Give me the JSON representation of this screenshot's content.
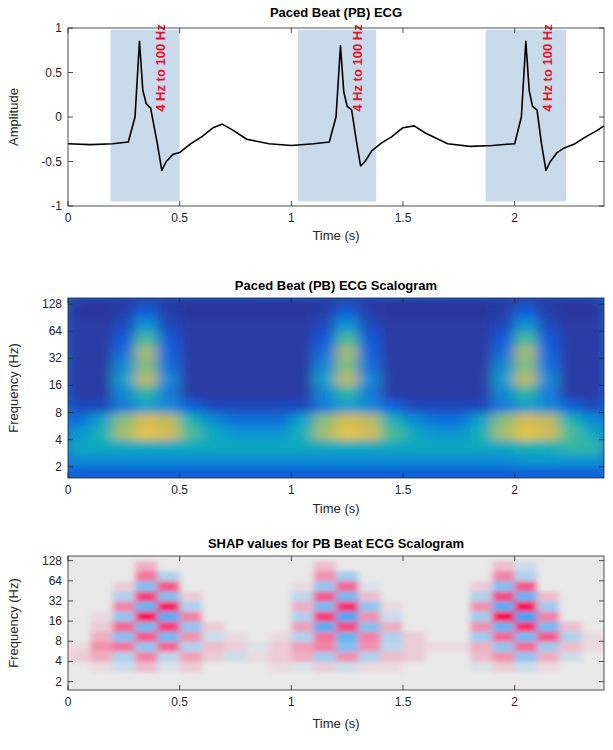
{
  "chart_data": [
    {
      "type": "line",
      "title": "Paced Beat (PB) ECG",
      "x_label": "Time (s)",
      "y_label": "Amplitude",
      "xlim": [
        0,
        2.4
      ],
      "ylim": [
        -1,
        1
      ],
      "xticks": [
        0,
        0.5,
        1,
        1.5,
        2
      ],
      "yticks": [
        -1,
        -0.5,
        0,
        0.5,
        1
      ],
      "color": "#000000",
      "x": [
        0,
        0.1,
        0.2,
        0.27,
        0.3,
        0.32,
        0.335,
        0.35,
        0.37,
        0.4,
        0.42,
        0.44,
        0.47,
        0.5,
        0.55,
        0.6,
        0.65,
        0.69,
        0.74,
        0.8,
        0.9,
        1.0,
        1.1,
        1.17,
        1.2,
        1.22,
        1.235,
        1.25,
        1.27,
        1.29,
        1.31,
        1.33,
        1.36,
        1.4,
        1.45,
        1.5,
        1.55,
        1.6,
        1.7,
        1.8,
        1.9,
        2.0,
        2.03,
        2.05,
        2.065,
        2.08,
        2.1,
        2.12,
        2.14,
        2.16,
        2.19,
        2.22,
        2.27,
        2.32,
        2.37,
        2.4
      ],
      "values": [
        -0.3,
        -0.31,
        -0.3,
        -0.28,
        0,
        0.85,
        0.3,
        0.15,
        0.1,
        -0.3,
        -0.6,
        -0.5,
        -0.42,
        -0.4,
        -0.3,
        -0.22,
        -0.12,
        -0.08,
        -0.15,
        -0.25,
        -0.3,
        -0.32,
        -0.3,
        -0.28,
        0,
        0.8,
        0.28,
        0.12,
        0.08,
        -0.25,
        -0.55,
        -0.5,
        -0.38,
        -0.3,
        -0.22,
        -0.12,
        -0.1,
        -0.18,
        -0.3,
        -0.33,
        -0.32,
        -0.3,
        0,
        0.85,
        0.3,
        0.12,
        0.08,
        -0.3,
        -0.6,
        -0.5,
        -0.4,
        -0.35,
        -0.3,
        -0.22,
        -0.15,
        -0.1
      ],
      "annotations": [
        {
          "text": "4 Hz to 100 Hz",
          "x_start": 0.19,
          "x_end": 0.5,
          "y_start": -0.95,
          "y_end": 0.98
        },
        {
          "text": "4 Hz to 100 Hz",
          "x_start": 1.03,
          "x_end": 1.38,
          "y_start": -0.95,
          "y_end": 0.98
        },
        {
          "text": "4 Hz to 100 Hz",
          "x_start": 1.87,
          "x_end": 2.23,
          "y_start": -0.95,
          "y_end": 0.98
        }
      ]
    },
    {
      "type": "heatmap",
      "title": "Paced Beat (PB) ECG Scalogram",
      "x_label": "Time (s)",
      "y_label": "Frequency (Hz)",
      "log": "y",
      "xlim": [
        0,
        2.4
      ],
      "ylim": [
        1.5,
        150
      ],
      "xticks": [
        0,
        0.5,
        1,
        1.5,
        2
      ],
      "yticks": [
        2,
        4,
        8,
        16,
        32,
        64,
        128
      ],
      "x_edges": [
        0,
        0.1,
        0.2,
        0.3,
        0.4,
        0.5,
        0.6,
        0.7,
        0.8,
        0.9,
        1.0,
        1.1,
        1.2,
        1.3,
        1.4,
        1.5,
        1.6,
        1.7,
        1.8,
        1.9,
        2.0,
        2.1,
        2.2,
        2.3,
        2.4
      ],
      "y_edges": [
        1.5,
        2,
        2.8,
        4,
        5.7,
        8,
        11.3,
        16,
        22.6,
        32,
        45,
        64,
        90,
        128,
        150
      ],
      "zlim": [
        0,
        1
      ],
      "cells": [
        [
          0.12,
          0.12,
          0.12,
          0.12,
          0.12,
          0.12,
          0.12,
          0.12,
          0.12,
          0.12,
          0.12,
          0.12,
          0.12,
          0.12,
          0.12,
          0.12,
          0.12,
          0.12,
          0.12,
          0.12,
          0.12,
          0.12,
          0.12,
          0.12
        ],
        [
          0.3,
          0.3,
          0.3,
          0.3,
          0.3,
          0.3,
          0.3,
          0.3,
          0.3,
          0.3,
          0.3,
          0.3,
          0.3,
          0.3,
          0.3,
          0.3,
          0.3,
          0.3,
          0.3,
          0.3,
          0.35,
          0.35,
          0.35,
          0.35
        ],
        [
          0.45,
          0.45,
          0.45,
          0.45,
          0.45,
          0.45,
          0.45,
          0.45,
          0.45,
          0.45,
          0.45,
          0.45,
          0.45,
          0.45,
          0.45,
          0.45,
          0.45,
          0.45,
          0.45,
          0.45,
          0.5,
          0.5,
          0.55,
          0.55
        ],
        [
          0.35,
          0.5,
          0.75,
          0.9,
          0.85,
          0.6,
          0.45,
          0.35,
          0.35,
          0.35,
          0.5,
          0.75,
          0.9,
          0.85,
          0.6,
          0.45,
          0.35,
          0.35,
          0.5,
          0.75,
          0.9,
          0.85,
          0.6,
          0.45
        ],
        [
          0.2,
          0.4,
          0.7,
          0.85,
          0.8,
          0.5,
          0.3,
          0.2,
          0.2,
          0.2,
          0.4,
          0.7,
          0.85,
          0.8,
          0.5,
          0.3,
          0.2,
          0.2,
          0.4,
          0.7,
          0.85,
          0.8,
          0.5,
          0.3
        ],
        [
          0.08,
          0.08,
          0.25,
          0.4,
          0.3,
          0.15,
          0.08,
          0.08,
          0.08,
          0.08,
          0.08,
          0.25,
          0.4,
          0.3,
          0.15,
          0.08,
          0.08,
          0.08,
          0.08,
          0.25,
          0.4,
          0.3,
          0.15,
          0.08
        ],
        [
          0.04,
          0.04,
          0.3,
          0.55,
          0.25,
          0.04,
          0.04,
          0.04,
          0.04,
          0.04,
          0.04,
          0.3,
          0.55,
          0.25,
          0.04,
          0.04,
          0.04,
          0.04,
          0.04,
          0.3,
          0.55,
          0.25,
          0.04,
          0.04
        ],
        [
          0.04,
          0.04,
          0.4,
          0.8,
          0.3,
          0.04,
          0.04,
          0.04,
          0.04,
          0.04,
          0.04,
          0.4,
          0.8,
          0.3,
          0.04,
          0.04,
          0.04,
          0.04,
          0.04,
          0.4,
          0.8,
          0.3,
          0.04,
          0.04
        ],
        [
          0.04,
          0.04,
          0.3,
          0.7,
          0.2,
          0.04,
          0.04,
          0.04,
          0.04,
          0.04,
          0.04,
          0.3,
          0.7,
          0.2,
          0.04,
          0.04,
          0.04,
          0.04,
          0.04,
          0.3,
          0.7,
          0.2,
          0.04,
          0.04
        ],
        [
          0.04,
          0.04,
          0.2,
          0.75,
          0.15,
          0.04,
          0.04,
          0.04,
          0.04,
          0.04,
          0.04,
          0.2,
          0.75,
          0.15,
          0.04,
          0.04,
          0.04,
          0.04,
          0.04,
          0.2,
          0.75,
          0.15,
          0.04,
          0.04
        ],
        [
          0.04,
          0.04,
          0.12,
          0.6,
          0.12,
          0.04,
          0.04,
          0.04,
          0.04,
          0.04,
          0.04,
          0.12,
          0.6,
          0.12,
          0.04,
          0.04,
          0.04,
          0.04,
          0.04,
          0.12,
          0.6,
          0.12,
          0.04,
          0.04
        ],
        [
          0.04,
          0.04,
          0.08,
          0.35,
          0.08,
          0.04,
          0.04,
          0.04,
          0.04,
          0.04,
          0.04,
          0.08,
          0.35,
          0.08,
          0.04,
          0.04,
          0.04,
          0.04,
          0.04,
          0.08,
          0.35,
          0.08,
          0.04,
          0.04
        ],
        [
          0.03,
          0.03,
          0.05,
          0.15,
          0.05,
          0.03,
          0.03,
          0.03,
          0.03,
          0.03,
          0.03,
          0.05,
          0.15,
          0.05,
          0.03,
          0.03,
          0.03,
          0.03,
          0.03,
          0.05,
          0.15,
          0.05,
          0.03,
          0.03
        ],
        [
          0.03,
          0.03,
          0.03,
          0.03,
          0.03,
          0.03,
          0.03,
          0.03,
          0.03,
          0.03,
          0.03,
          0.03,
          0.03,
          0.03,
          0.03,
          0.03,
          0.03,
          0.03,
          0.03,
          0.03,
          0.03,
          0.03,
          0.03,
          0.03
        ]
      ]
    },
    {
      "type": "heatmap",
      "title": "SHAP values for PB Beat ECG Scalogram",
      "x_label": "Time (s)",
      "y_label": "Frequency (Hz)",
      "log": "y",
      "xlim": [
        0,
        2.4
      ],
      "ylim": [
        1.5,
        150
      ],
      "xticks": [
        0,
        0.5,
        1,
        1.5,
        2
      ],
      "yticks": [
        2,
        4,
        8,
        16,
        32,
        64,
        128
      ],
      "x_edges": [
        0,
        0.1,
        0.2,
        0.3,
        0.4,
        0.5,
        0.6,
        0.7,
        0.8,
        0.9,
        1.0,
        1.1,
        1.2,
        1.3,
        1.4,
        1.5,
        1.6,
        1.7,
        1.8,
        1.9,
        2.0,
        2.1,
        2.2,
        2.3,
        2.4
      ],
      "y_edges": [
        1.5,
        2,
        2.8,
        4,
        5.7,
        8,
        11.3,
        16,
        22.6,
        32,
        45,
        64,
        90,
        128,
        150
      ],
      "zlim": [
        -0.8,
        0.8
      ],
      "cells": [
        [
          0,
          0,
          0,
          0,
          0,
          0,
          0,
          0,
          0,
          0,
          0,
          0,
          0,
          0,
          0,
          0,
          0,
          0,
          0,
          0,
          0,
          0,
          0,
          0
        ],
        [
          0,
          0,
          0,
          0,
          0,
          0,
          0,
          0,
          0,
          0,
          0,
          0,
          0,
          0,
          0,
          0,
          0,
          0,
          0,
          0,
          0,
          0,
          0,
          0
        ],
        [
          0,
          0.05,
          -0.1,
          0.15,
          -0.05,
          0.1,
          0,
          0,
          0,
          0.05,
          -0.05,
          0.1,
          -0.1,
          0.05,
          0.05,
          0,
          0,
          0,
          -0.05,
          0.1,
          -0.1,
          0.05,
          0,
          0
        ],
        [
          0.1,
          0.2,
          -0.2,
          0.35,
          -0.15,
          0.25,
          0.1,
          -0.1,
          0.05,
          0.1,
          0.2,
          -0.25,
          0.3,
          -0.2,
          0.15,
          0.1,
          0,
          0,
          0.15,
          0.3,
          -0.3,
          0.2,
          -0.1,
          0
        ],
        [
          0.05,
          0.3,
          0.4,
          -0.3,
          0.45,
          -0.2,
          0.15,
          0.1,
          -0.05,
          0.1,
          0.25,
          0.35,
          -0.35,
          0.3,
          -0.15,
          0.1,
          0.05,
          0.05,
          0.2,
          -0.3,
          0.45,
          -0.25,
          0.15,
          0.05
        ],
        [
          0,
          0.2,
          -0.35,
          0.5,
          -0.4,
          0.3,
          -0.1,
          0.05,
          0,
          0.05,
          -0.2,
          0.4,
          -0.45,
          0.35,
          -0.2,
          0.1,
          0,
          0,
          -0.25,
          0.45,
          -0.4,
          0.5,
          -0.2,
          0.05
        ],
        [
          0,
          0.1,
          0.45,
          -0.4,
          0.6,
          -0.3,
          0.1,
          0,
          0,
          0,
          0.25,
          -0.5,
          0.55,
          -0.35,
          0.2,
          0,
          0,
          0,
          0.3,
          -0.45,
          0.65,
          -0.4,
          0.15,
          0
        ],
        [
          0,
          0.05,
          -0.3,
          0.75,
          -0.5,
          0.35,
          0,
          0,
          0,
          0,
          -0.2,
          0.6,
          -0.55,
          0.3,
          -0.1,
          0,
          0,
          0,
          -0.25,
          0.8,
          -0.6,
          0.35,
          0,
          0
        ],
        [
          0,
          0,
          0.35,
          -0.45,
          0.7,
          -0.2,
          0,
          0,
          0,
          0,
          0.2,
          -0.4,
          0.65,
          -0.3,
          0.05,
          0,
          0,
          0,
          0.3,
          -0.5,
          0.75,
          -0.25,
          0,
          0
        ],
        [
          0,
          0,
          -0.2,
          0.6,
          -0.35,
          0.1,
          0,
          0,
          0,
          0,
          -0.15,
          0.5,
          -0.4,
          0.15,
          0,
          0,
          0,
          0,
          -0.2,
          0.55,
          -0.45,
          0.15,
          0,
          0
        ],
        [
          0,
          0,
          0.1,
          -0.35,
          0.5,
          0,
          0,
          0,
          0,
          0,
          0.05,
          -0.3,
          0.45,
          -0.05,
          0,
          0,
          0,
          0,
          0.1,
          -0.35,
          0.5,
          0,
          0,
          0
        ],
        [
          0,
          0,
          0,
          0.4,
          -0.2,
          0,
          0,
          0,
          0,
          0,
          0,
          0.3,
          -0.25,
          0,
          0,
          0,
          0,
          0,
          0,
          0.35,
          -0.2,
          0,
          0,
          0
        ],
        [
          0,
          0,
          0,
          0.2,
          0,
          0,
          0,
          0,
          0,
          0,
          0,
          0.15,
          0,
          0,
          0,
          0,
          0,
          0,
          0,
          0.15,
          -0.1,
          0,
          0,
          0
        ],
        [
          0,
          0,
          0,
          0,
          0,
          0,
          0,
          0,
          0,
          0,
          0,
          0,
          0,
          0,
          0,
          0,
          0,
          0,
          0,
          0,
          0,
          0,
          0,
          0
        ]
      ]
    }
  ]
}
